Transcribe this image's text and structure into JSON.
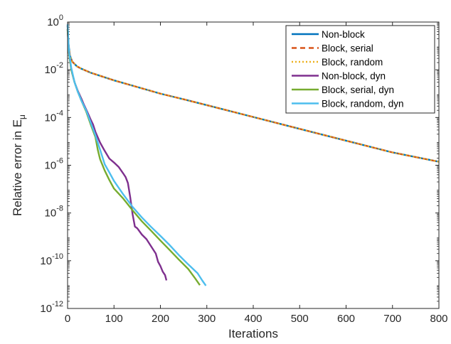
{
  "chart_data": {
    "type": "line",
    "xlabel": "Iterations",
    "ylabel": "Relative error in E",
    "ylabel_subscript": "μ",
    "xlim": [
      0,
      800
    ],
    "ylim": [
      1e-12,
      1
    ],
    "yscale": "log",
    "grid": false,
    "legend_position": "top-right",
    "x_ticks": [
      0,
      100,
      200,
      300,
      400,
      500,
      600,
      700,
      800
    ],
    "y_ticks": [
      {
        "value": 1.0,
        "base": "10",
        "exp": "0"
      },
      {
        "value": 0.01,
        "base": "10",
        "exp": "-2"
      },
      {
        "value": 0.0001,
        "base": "10",
        "exp": "-4"
      },
      {
        "value": 1e-06,
        "base": "10",
        "exp": "-6"
      },
      {
        "value": 1e-08,
        "base": "10",
        "exp": "-8"
      },
      {
        "value": 1e-10,
        "base": "10",
        "exp": "-10"
      },
      {
        "value": 1e-12,
        "base": "10",
        "exp": "-12"
      }
    ],
    "series": [
      {
        "name": "Non-block",
        "color": "#0072BD",
        "style": "solid",
        "points": [
          [
            0,
            0.7
          ],
          [
            2,
            0.12
          ],
          [
            5,
            0.04
          ],
          [
            10,
            0.022
          ],
          [
            20,
            0.014
          ],
          [
            30,
            0.011
          ],
          [
            50,
            0.0075
          ],
          [
            100,
            0.0036
          ],
          [
            150,
            0.0019
          ],
          [
            200,
            0.001
          ],
          [
            250,
            0.00058
          ],
          [
            300,
            0.00033
          ],
          [
            400,
            0.000105
          ],
          [
            500,
            3.35e-05
          ],
          [
            600,
            1.07e-05
          ],
          [
            700,
            3.44e-06
          ],
          [
            800,
            1.4e-06
          ]
        ]
      },
      {
        "name": "Block, serial",
        "color": "#D95319",
        "style": "dashed",
        "points": [
          [
            0,
            0.7
          ],
          [
            2,
            0.12
          ],
          [
            5,
            0.04
          ],
          [
            10,
            0.022
          ],
          [
            20,
            0.014
          ],
          [
            30,
            0.011
          ],
          [
            50,
            0.0075
          ],
          [
            100,
            0.0036
          ],
          [
            150,
            0.0019
          ],
          [
            200,
            0.001
          ],
          [
            250,
            0.00058
          ],
          [
            300,
            0.00033
          ],
          [
            400,
            0.000105
          ],
          [
            500,
            3.35e-05
          ],
          [
            600,
            1.07e-05
          ],
          [
            700,
            3.44e-06
          ],
          [
            800,
            1.4e-06
          ]
        ]
      },
      {
        "name": "Block, random",
        "color": "#EDB120",
        "style": "dotted",
        "points": [
          [
            0,
            0.7
          ],
          [
            2,
            0.12
          ],
          [
            5,
            0.04
          ],
          [
            10,
            0.022
          ],
          [
            20,
            0.014
          ],
          [
            30,
            0.011
          ],
          [
            50,
            0.0075
          ],
          [
            100,
            0.0036
          ],
          [
            150,
            0.0019
          ],
          [
            200,
            0.001
          ],
          [
            250,
            0.00058
          ],
          [
            300,
            0.00033
          ],
          [
            400,
            0.000105
          ],
          [
            500,
            3.35e-05
          ],
          [
            600,
            1.07e-05
          ],
          [
            700,
            3.44e-06
          ],
          [
            800,
            1.4e-06
          ]
        ]
      },
      {
        "name": "Non-block, dyn",
        "color": "#7E2F8E",
        "style": "solid",
        "points": [
          [
            0,
            0.5
          ],
          [
            3,
            0.05
          ],
          [
            8,
            0.01
          ],
          [
            15,
            0.003
          ],
          [
            22,
            0.0013
          ],
          [
            30,
            0.0006
          ],
          [
            35,
            0.00035
          ],
          [
            42,
            0.00018
          ],
          [
            50,
            8e-05
          ],
          [
            55,
            5e-05
          ],
          [
            60,
            2.5e-05
          ],
          [
            70,
            8.9e-06
          ],
          [
            80,
            4e-06
          ],
          [
            90,
            1.9e-06
          ],
          [
            100,
            1.3e-06
          ],
          [
            110,
            8.5e-07
          ],
          [
            120,
            4.5e-07
          ],
          [
            125,
            3.2e-07
          ],
          [
            130,
            1.8e-07
          ],
          [
            135,
            4.5e-08
          ],
          [
            140,
            9e-09
          ],
          [
            145,
            2.7e-09
          ],
          [
            150,
            2.3e-09
          ],
          [
            160,
            1.25e-09
          ],
          [
            170,
            8e-10
          ],
          [
            180,
            4e-10
          ],
          [
            190,
            2e-10
          ],
          [
            195,
            9e-11
          ],
          [
            200,
            6e-11
          ],
          [
            205,
            3.5e-11
          ],
          [
            210,
            2.5e-11
          ],
          [
            213,
            1.5e-11
          ]
        ]
      },
      {
        "name": "Block, serial, dyn",
        "color": "#77AC30",
        "style": "solid",
        "points": [
          [
            0,
            0.5
          ],
          [
            3,
            0.05
          ],
          [
            8,
            0.01
          ],
          [
            15,
            0.003
          ],
          [
            22,
            0.0012
          ],
          [
            30,
            0.0005
          ],
          [
            40,
            0.00018
          ],
          [
            50,
            5e-05
          ],
          [
            60,
            1.5e-05
          ],
          [
            65,
            4.5e-06
          ],
          [
            70,
            1.8e-06
          ],
          [
            80,
            6e-07
          ],
          [
            90,
            2.4e-07
          ],
          [
            100,
            1.05e-07
          ],
          [
            120,
            4e-08
          ],
          [
            140,
            1.3e-08
          ],
          [
            160,
            4.5e-09
          ],
          [
            180,
            1.8e-09
          ],
          [
            200,
            7e-10
          ],
          [
            220,
            2.8e-10
          ],
          [
            240,
            1.1e-10
          ],
          [
            260,
            4.5e-11
          ],
          [
            275,
            1.8e-11
          ],
          [
            285,
            9.5e-12
          ]
        ]
      },
      {
        "name": "Block, random, dyn",
        "color": "#4DBEEE",
        "style": "solid",
        "points": [
          [
            0,
            0.8
          ],
          [
            3,
            0.06
          ],
          [
            8,
            0.012
          ],
          [
            15,
            0.003
          ],
          [
            22,
            0.0012
          ],
          [
            30,
            0.0005
          ],
          [
            40,
            0.0002
          ],
          [
            50,
            6e-05
          ],
          [
            60,
            1.8e-05
          ],
          [
            70,
            4.5e-06
          ],
          [
            80,
            1.1e-06
          ],
          [
            90,
            5e-07
          ],
          [
            100,
            2.2e-07
          ],
          [
            120,
            6e-08
          ],
          [
            140,
            1.8e-08
          ],
          [
            160,
            6.5e-09
          ],
          [
            180,
            2.6e-09
          ],
          [
            200,
            1.1e-09
          ],
          [
            220,
            4.5e-10
          ],
          [
            240,
            1.7e-10
          ],
          [
            260,
            7e-11
          ],
          [
            280,
            3e-11
          ],
          [
            290,
            1.5e-11
          ],
          [
            298,
            9e-12
          ]
        ]
      }
    ]
  }
}
